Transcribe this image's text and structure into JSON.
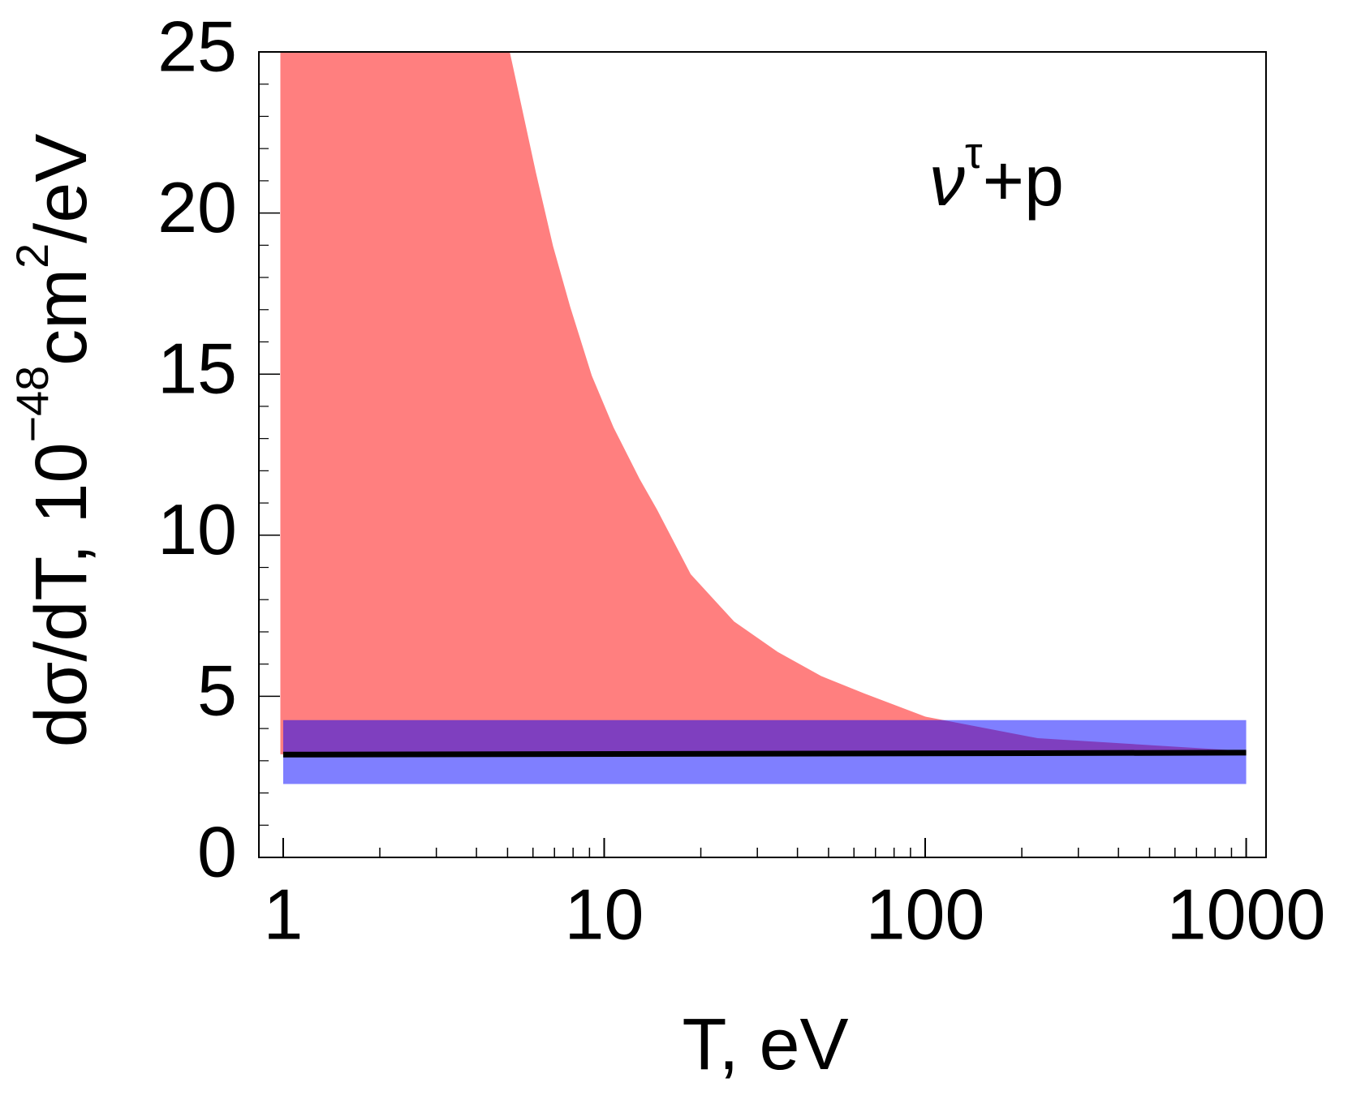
{
  "chart_data": {
    "type": "band",
    "xlabel": "T, eV",
    "ylabel_parts": [
      {
        "text": "dσ/dT, 10"
      },
      {
        "text": "−48",
        "sup": true
      },
      {
        "text": "cm"
      },
      {
        "text": "2",
        "sup": true
      },
      {
        "text": "/eV"
      }
    ],
    "annotation_parts": [
      {
        "text": "ν"
      },
      {
        "text": "τ",
        "sup": true
      },
      {
        "text": "+p"
      }
    ],
    "xscale": "log",
    "xlim": [
      0.84,
      1153
    ],
    "xticks": [
      1,
      10,
      100,
      1000
    ],
    "xminorticks": [
      2,
      3,
      4,
      5,
      6,
      7,
      8,
      9,
      20,
      30,
      40,
      50,
      60,
      70,
      80,
      90,
      200,
      300,
      400,
      500,
      600,
      700,
      800,
      900
    ],
    "ylim": [
      0,
      25
    ],
    "yticks": [
      0,
      5,
      10,
      15,
      20,
      25
    ],
    "yminorticks": [
      1,
      2,
      3,
      4,
      6,
      7,
      8,
      9,
      11,
      12,
      13,
      14,
      16,
      17,
      18,
      19,
      21,
      22,
      23,
      24
    ],
    "bands": [
      {
        "color": "#ff0000",
        "opacity": 0.5,
        "x": [
          0.98,
          5.08,
          6.13,
          6.93,
          7.83,
          9.15,
          10.7,
          12.9,
          14.6,
          18.6,
          25.4,
          34.7,
          47.4,
          64.6,
          100,
          224,
          1000
        ],
        "upper": [
          25,
          25,
          21.25,
          18.97,
          17.1,
          14.95,
          13.34,
          11.74,
          10.8,
          8.79,
          7.32,
          6.38,
          5.63,
          5.09,
          4.37,
          3.7,
          3.3
        ],
        "lower": [
          3.2,
          3.2,
          3.2,
          3.2,
          3.2,
          3.2,
          3.2,
          3.2,
          3.2,
          3.2,
          3.2,
          3.2,
          3.2,
          3.2,
          3.2,
          3.2,
          3.2
        ]
      },
      {
        "color": "#0000ff",
        "opacity": 0.5,
        "x": [
          1,
          1000
        ],
        "upper": [
          4.26,
          4.26
        ],
        "lower": [
          2.28,
          2.28
        ]
      }
    ],
    "lines": [
      {
        "color": "#000000",
        "x": [
          1,
          1000
        ],
        "values": [
          3.19,
          3.25
        ]
      }
    ]
  }
}
